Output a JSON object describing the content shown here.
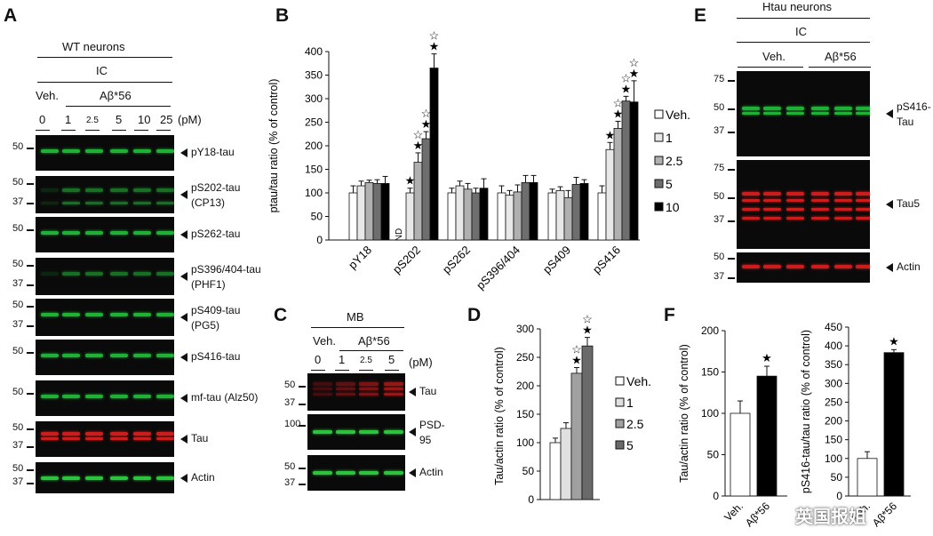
{
  "panels": {
    "a": {
      "label": "A",
      "header": "WT neurons",
      "condition": "IC",
      "veh": "Veh.",
      "treatment": "Aβ*56",
      "doses": [
        "0",
        "1",
        "2.5",
        "5",
        "10",
        "25"
      ],
      "unit": "(pM)",
      "blots": [
        {
          "label1": "pY18-tau",
          "label2": "",
          "mw": [
            "50"
          ],
          "color": "#22c23a"
        },
        {
          "label1": "pS202-tau",
          "label2": "(CP13)",
          "mw": [
            "50",
            "37"
          ],
          "color": "#22c23a"
        },
        {
          "label1": "pS262-tau",
          "label2": "",
          "mw": [
            "50"
          ],
          "color": "#22c23a"
        },
        {
          "label1": "pS396/404-tau",
          "label2": "(PHF1)",
          "mw": [
            "50",
            "37"
          ],
          "color": "#22c23a"
        },
        {
          "label1": "pS409-tau",
          "label2": "(PG5)",
          "mw": [
            "50",
            "37"
          ],
          "color": "#22c23a"
        },
        {
          "label1": "pS416-tau",
          "label2": "",
          "mw": [
            "50"
          ],
          "color": "#22c23a"
        },
        {
          "label1": "mf-tau (Alz50)",
          "label2": "",
          "mw": [
            "50"
          ],
          "color": "#22c23a"
        },
        {
          "label1": "Tau",
          "label2": "",
          "mw": [
            "50",
            "37"
          ],
          "color": "#e02020"
        },
        {
          "label1": "Actin",
          "label2": "",
          "mw": [
            "50",
            "37"
          ],
          "color": "#33d844"
        }
      ]
    },
    "b": {
      "label": "B",
      "legend": [
        "Veh.",
        "1",
        "2.5",
        "5",
        "10"
      ],
      "nd": "ND"
    },
    "c": {
      "label": "C",
      "condition": "MB",
      "veh": "Veh.",
      "treatment": "Aβ*56",
      "doses": [
        "0",
        "1",
        "2.5",
        "5"
      ],
      "unit": "(pM)",
      "blots": [
        {
          "label1": "Tau",
          "label2": "",
          "mw": [
            "50",
            "37"
          ],
          "color": "#e02020"
        },
        {
          "label1": "PSD-",
          "label2": "95",
          "mw": [
            "100"
          ],
          "color": "#33d844"
        },
        {
          "label1": "Actin",
          "label2": "",
          "mw": [
            "50",
            "37"
          ],
          "color": "#33d844"
        }
      ]
    },
    "d": {
      "label": "D",
      "legend": [
        "Veh.",
        "1",
        "2.5",
        "5"
      ]
    },
    "e": {
      "label": "E",
      "header": "Htau neurons",
      "condition": "IC",
      "veh": "Veh.",
      "treatment": "Aβ*56",
      "blots": [
        {
          "label1": "pS416-",
          "label2": "Tau",
          "mw": [
            "75",
            "50",
            "37"
          ],
          "color": "#22c23a"
        },
        {
          "label1": "Tau5",
          "label2": "",
          "mw": [
            "75",
            "50",
            "37"
          ],
          "color": "#e02020"
        },
        {
          "label1": "Actin",
          "label2": "",
          "mw": [
            "50",
            "37"
          ],
          "color": "#e02020"
        }
      ]
    },
    "f": {
      "label": "F"
    }
  },
  "watermark": "英国报姐",
  "chart_data": [
    {
      "type": "bar",
      "id": "B",
      "ylabel": "ptau/tau ratio (% of control)",
      "ylim": [
        0,
        400
      ],
      "yticks": [
        "0",
        "50",
        "100",
        "150",
        "200",
        "250",
        "300",
        "350",
        "400"
      ],
      "categories": [
        "pY18",
        "pS202",
        "pS262",
        "pS396/404",
        "pS409",
        "pS416"
      ],
      "series": [
        {
          "name": "Veh.",
          "color": "#ffffff",
          "values": [
            100,
            0,
            100,
            100,
            100,
            100
          ],
          "errors": [
            15,
            0,
            10,
            15,
            8,
            15
          ]
        },
        {
          "name": "1",
          "color": "#e8e8e8",
          "values": [
            115,
            100,
            115,
            95,
            105,
            192
          ],
          "errors": [
            10,
            10,
            10,
            10,
            8,
            15
          ]
        },
        {
          "name": "2.5",
          "color": "#b0b0b0",
          "values": [
            122,
            165,
            108,
            102,
            90,
            237
          ],
          "errors": [
            5,
            20,
            12,
            15,
            15,
            15
          ]
        },
        {
          "name": "5",
          "color": "#6e6e6e",
          "values": [
            120,
            215,
            100,
            122,
            118,
            295
          ],
          "errors": [
            8,
            15,
            10,
            15,
            15,
            10
          ]
        },
        {
          "name": "10",
          "color": "#000000",
          "values": [
            120,
            365,
            110,
            122,
            120,
            293
          ],
          "errors": [
            15,
            30,
            20,
            15,
            8,
            45
          ]
        }
      ],
      "annotations": {
        "pS202": {
          "1": "★",
          "2.5": "☆★",
          "5": "☆★",
          "10": "☆★"
        },
        "pS416": {
          "1": "★",
          "2.5": "☆★",
          "5": "☆★",
          "10": "☆★"
        }
      }
    },
    {
      "type": "bar",
      "id": "D",
      "ylabel": "Tau/actin ratio (% of control)",
      "ylim": [
        0,
        300
      ],
      "yticks": [
        "0",
        "50",
        "100",
        "150",
        "200",
        "250",
        "300"
      ],
      "categories": [
        "Veh.",
        "1",
        "2.5",
        "5"
      ],
      "values": [
        100,
        125,
        222,
        270
      ],
      "errors": [
        8,
        10,
        10,
        15
      ],
      "colors": [
        "#ffffff",
        "#e0e0e0",
        "#a0a0a0",
        "#6a6a6a"
      ],
      "annotations": {
        "2.5": "☆★",
        "5": "☆★"
      }
    },
    {
      "type": "bar",
      "id": "F1",
      "ylabel": "Tau/actin ratio (% of control)",
      "ylim": [
        0,
        200
      ],
      "yticks": [
        "0",
        "50",
        "100",
        "150",
        "200"
      ],
      "categories": [
        "Veh.",
        "Aβ*56"
      ],
      "values": [
        100,
        145
      ],
      "errors": [
        15,
        12
      ],
      "colors": [
        "#ffffff",
        "#000000"
      ],
      "annotations": {
        "Aβ*56": "★"
      }
    },
    {
      "type": "bar",
      "id": "F2",
      "ylabel": "pS416-tau/tau ratio (% of control)",
      "ylim": [
        0,
        450
      ],
      "yticks": [
        "0",
        "50",
        "100",
        "150",
        "200",
        "250",
        "300",
        "350",
        "400",
        "450"
      ],
      "categories": [
        "Veh.",
        "Aβ*56"
      ],
      "values": [
        100,
        382
      ],
      "errors": [
        18,
        8
      ],
      "colors": [
        "#ffffff",
        "#000000"
      ],
      "annotations": {
        "Aβ*56": "★"
      }
    }
  ]
}
